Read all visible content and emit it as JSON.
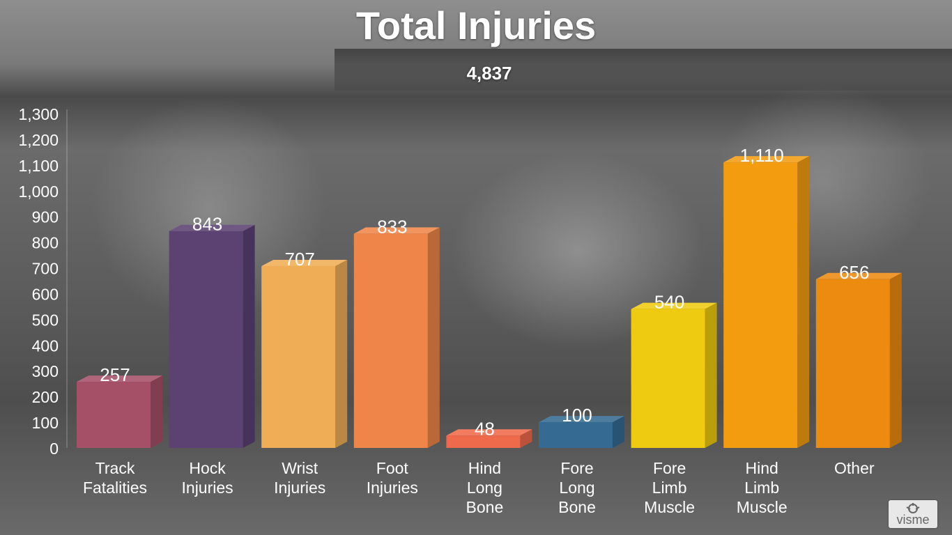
{
  "title": "Total Injuries",
  "total": "4,837",
  "logo_text": "visme",
  "chart_data": {
    "type": "bar",
    "title": "Total Injuries",
    "subtitle": "4,837",
    "categories": [
      "Track Fatalities",
      "Hock Injuries",
      "Wrist Injuries",
      "Foot Injuries",
      "Hind Long Bone",
      "Fore Long Bone",
      "Fore Limb Muscle",
      "Hind Limb Muscle",
      "Other"
    ],
    "values": [
      257,
      843,
      707,
      833,
      48,
      100,
      540,
      1110,
      656
    ],
    "value_labels": [
      "257",
      "843",
      "707",
      "833",
      "48",
      "100",
      "540",
      "1,110",
      "656"
    ],
    "colors": [
      "#a65068",
      "#5b4272",
      "#efae55",
      "#ef8548",
      "#ef6a4a",
      "#356a92",
      "#eecb10",
      "#f39c10",
      "#ed8a10"
    ],
    "yticks": [
      {
        "value": 0,
        "label": "0"
      },
      {
        "value": 100,
        "label": "100"
      },
      {
        "value": 200,
        "label": "200"
      },
      {
        "value": 300,
        "label": "300"
      },
      {
        "value": 400,
        "label": "400"
      },
      {
        "value": 500,
        "label": "500"
      },
      {
        "value": 600,
        "label": "600"
      },
      {
        "value": 700,
        "label": "700"
      },
      {
        "value": 800,
        "label": "800"
      },
      {
        "value": 900,
        "label": "900"
      },
      {
        "value": 1000,
        "label": "1,000"
      },
      {
        "value": 1100,
        "label": "1,100"
      },
      {
        "value": 1200,
        "label": "1,200"
      },
      {
        "value": 1300,
        "label": "1,300"
      }
    ],
    "ylim": [
      0,
      1300
    ],
    "grid": false,
    "three_d": true
  }
}
